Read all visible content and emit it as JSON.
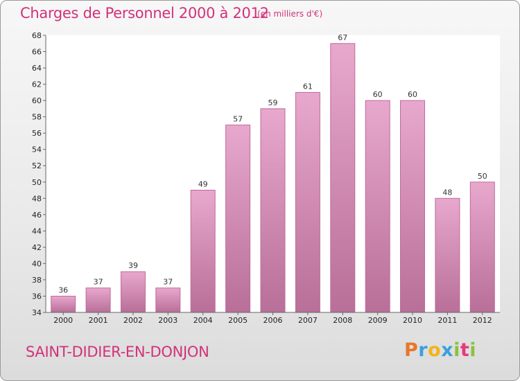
{
  "header": {
    "title": "Charges de Personnel 2000 à 2012",
    "subtitle": "(en milliers d'€)"
  },
  "footer": {
    "place_name": "SAINT-DIDIER-EN-DONJON",
    "logo": {
      "letters": [
        "P",
        "r",
        "o",
        "x",
        "i",
        "t",
        "i"
      ],
      "colors": [
        "#e8762b",
        "#3aa0dd",
        "#f2b418",
        "#3aa0dd",
        "#8bc13d",
        "#e63a7a",
        "#8bc13d"
      ]
    }
  },
  "colors": {
    "accent": "#d3317a",
    "bar_top": "#e8a8cd",
    "bar_bottom": "#b86f98",
    "bar_border": "#c06a9a",
    "axis": "#666666",
    "plot_bg": "#ffffff"
  },
  "chart_data": {
    "type": "bar",
    "categories": [
      "2000",
      "2001",
      "2002",
      "2003",
      "2004",
      "2005",
      "2006",
      "2007",
      "2008",
      "2009",
      "2010",
      "2011",
      "2012"
    ],
    "values": [
      36,
      37,
      39,
      37,
      49,
      57,
      59,
      61,
      67,
      60,
      60,
      48,
      50
    ],
    "data_labels": [
      "36",
      "37",
      "39",
      "37",
      "49",
      "57",
      "59",
      "61",
      "67",
      "60",
      "60",
      "48",
      "50"
    ],
    "ylim": [
      34,
      68
    ],
    "yticks": [
      "34",
      "36",
      "38",
      "40",
      "42",
      "44",
      "46",
      "48",
      "50",
      "52",
      "54",
      "56",
      "58",
      "60",
      "62",
      "64",
      "66",
      "68"
    ],
    "ytick_values": [
      34,
      36,
      38,
      40,
      42,
      44,
      46,
      48,
      50,
      52,
      54,
      56,
      58,
      60,
      62,
      64,
      66,
      68
    ],
    "grid": false,
    "xlabel": "",
    "ylabel": ""
  }
}
